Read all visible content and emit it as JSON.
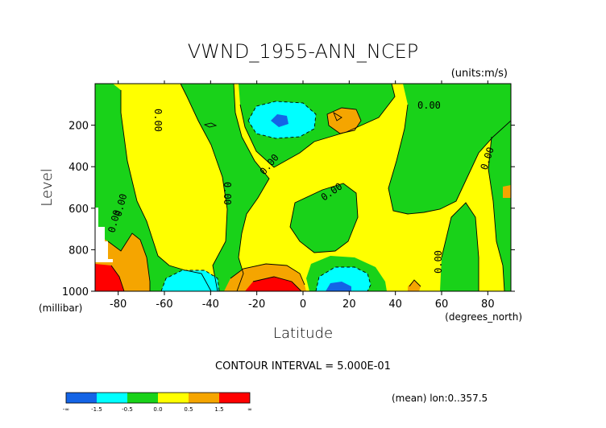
{
  "chart_data": {
    "type": "heatmap",
    "title": "VWND_1955-ANN_NCEP",
    "units_label": "(units:m/s)",
    "xlabel": "Latitude",
    "ylabel": "Level",
    "x_unit_label": "(degrees_north)",
    "y_unit_label": "(millibar)",
    "xlim": [
      -90,
      90
    ],
    "ylim": [
      1000,
      0
    ],
    "x_ticks": [
      -80,
      -60,
      -40,
      -20,
      0,
      20,
      40,
      60,
      80
    ],
    "y_ticks": [
      200,
      400,
      600,
      800,
      1000
    ],
    "x_tick_labels": [
      "-80",
      "-60",
      "-40",
      "-20",
      "0",
      "20",
      "40",
      "60",
      "80"
    ],
    "y_tick_labels": [
      "200",
      "400",
      "600",
      "800",
      "1000"
    ],
    "contour_interval_text": "CONTOUR INTERVAL = 5.000E-01",
    "contour_labels": [
      "0.00",
      "0.00",
      "0.00",
      "0.00",
      "0.00",
      "0.00",
      "0.00",
      "0.00",
      "0.00"
    ],
    "footer_text": "(mean) lon:0..357.5",
    "legend": {
      "colors": [
        "#1464e6",
        "#00ffff",
        "#19d219",
        "#ffff00",
        "#f5a500",
        "#ff0000"
      ],
      "tick_labels": [
        "-∞",
        "-1.5",
        "-0.5",
        "0.0",
        "0.5",
        "1.5",
        "∞"
      ]
    }
  }
}
